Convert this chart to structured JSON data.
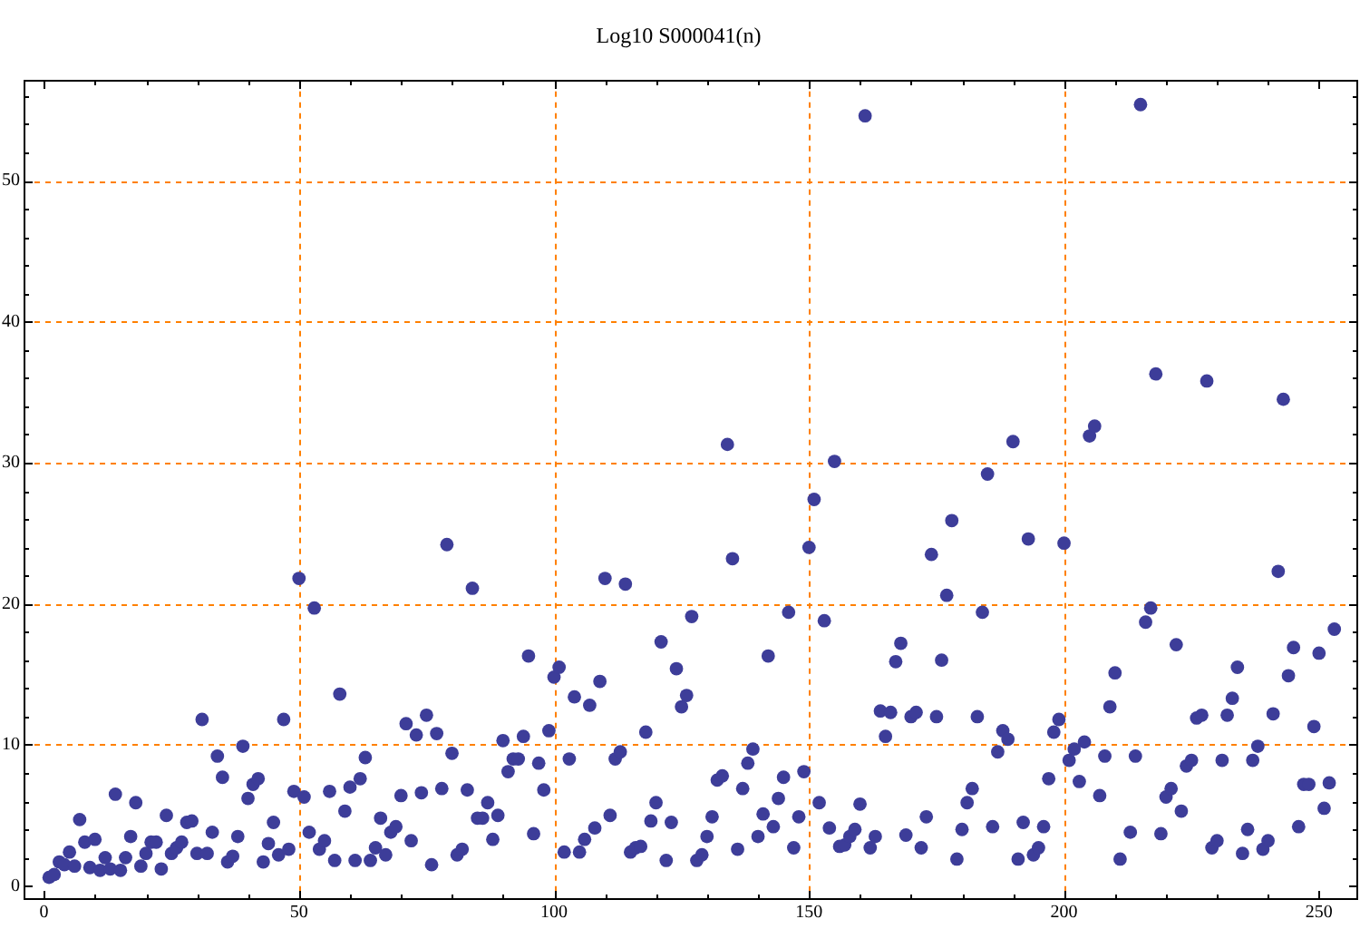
{
  "chart_data": {
    "type": "scatter",
    "title": "Log10 S000041(n)",
    "color": "#3d3d99",
    "marker": "circle",
    "xlim": [
      -4,
      257.5
    ],
    "ylim": [
      -1,
      57.1
    ],
    "xticks": [
      0,
      {
        "value": 10,
        "label": null
      },
      {
        "value": 20,
        "label": null
      },
      {
        "value": 30,
        "label": null
      },
      {
        "value": 40,
        "label": null
      },
      50,
      {
        "value": 60,
        "label": null
      },
      {
        "value": 70,
        "label": null
      },
      {
        "value": 80,
        "label": null
      },
      {
        "value": 90,
        "label": null
      },
      100,
      {
        "value": 110,
        "label": null
      },
      {
        "value": 120,
        "label": null
      },
      {
        "value": 130,
        "label": null
      },
      {
        "value": 140,
        "label": null
      },
      150,
      {
        "value": 160,
        "label": null
      },
      {
        "value": 170,
        "label": null
      },
      {
        "value": 180,
        "label": null
      },
      {
        "value": 190,
        "label": null
      },
      200,
      {
        "value": 210,
        "label": null
      },
      {
        "value": 220,
        "label": null
      },
      {
        "value": 230,
        "label": null
      },
      {
        "value": 240,
        "label": null
      },
      250
    ],
    "yticks": [
      0,
      {
        "value": 2,
        "label": null
      },
      {
        "value": 4,
        "label": null
      },
      {
        "value": 6,
        "label": null
      },
      {
        "value": 8,
        "label": null
      },
      10,
      {
        "value": 12,
        "label": null
      },
      {
        "value": 14,
        "label": null
      },
      {
        "value": 16,
        "label": null
      },
      {
        "value": 18,
        "label": null
      },
      20,
      {
        "value": 22,
        "label": null
      },
      {
        "value": 24,
        "label": null
      },
      {
        "value": 26,
        "label": null
      },
      {
        "value": 28,
        "label": null
      },
      30,
      {
        "value": 32,
        "label": null
      },
      {
        "value": 34,
        "label": null
      },
      {
        "value": 36,
        "label": null
      },
      {
        "value": 38,
        "label": null
      },
      40,
      {
        "value": 42,
        "label": null
      },
      {
        "value": 44,
        "label": null
      },
      {
        "value": 46,
        "label": null
      },
      {
        "value": 48,
        "label": null
      },
      50,
      {
        "value": 52,
        "label": null
      },
      {
        "value": 54,
        "label": null
      },
      {
        "value": 56,
        "label": null
      }
    ],
    "ref_lines": [
      {
        "axis": "x",
        "value": 50,
        "color": "#ff8000",
        "line_style": "dashed"
      },
      {
        "axis": "x",
        "value": 100,
        "color": "#ff8000",
        "line_style": "dashed"
      },
      {
        "axis": "x",
        "value": 150,
        "color": "#ff8000",
        "line_style": "dashed"
      },
      {
        "axis": "x",
        "value": 200,
        "color": "#ff8000",
        "line_style": "dashed"
      },
      {
        "axis": "y",
        "value": 10,
        "color": "#ff8000",
        "line_style": "dashed"
      },
      {
        "axis": "y",
        "value": 20,
        "color": "#ff8000",
        "line_style": "dashed"
      },
      {
        "axis": "y",
        "value": 30,
        "color": "#ff8000",
        "line_style": "dashed"
      },
      {
        "axis": "y",
        "value": 40,
        "color": "#ff8000",
        "line_style": "dashed"
      },
      {
        "axis": "y",
        "value": 50,
        "color": "#ff8000",
        "line_style": "dashed"
      }
    ],
    "x": [
      1,
      2,
      3,
      4,
      5,
      6,
      7,
      8,
      9,
      10,
      11,
      12,
      13,
      14,
      15,
      16,
      17,
      18,
      19,
      20,
      21,
      22,
      23,
      24,
      25,
      26,
      27,
      28,
      29,
      30,
      31,
      32,
      33,
      34,
      35,
      36,
      37,
      38,
      39,
      40,
      41,
      42,
      43,
      44,
      45,
      46,
      47,
      48,
      49,
      50,
      51,
      52,
      53,
      54,
      55,
      56,
      57,
      58,
      59,
      60,
      61,
      62,
      63,
      64,
      65,
      66,
      67,
      68,
      69,
      70,
      71,
      72,
      73,
      74,
      75,
      76,
      77,
      78,
      79,
      80,
      81,
      82,
      83,
      84,
      85,
      86,
      87,
      88,
      89,
      90,
      91,
      92,
      93,
      94,
      95,
      96,
      97,
      98,
      99,
      100,
      101,
      102,
      103,
      104,
      105,
      106,
      107,
      108,
      109,
      110,
      111,
      112,
      113,
      114,
      115,
      116,
      117,
      118,
      119,
      120,
      121,
      122,
      123,
      124,
      125,
      126,
      127,
      128,
      129,
      130,
      131,
      132,
      133,
      134,
      135,
      136,
      137,
      138,
      139,
      140,
      141,
      142,
      143,
      144,
      145,
      146,
      147,
      148,
      149,
      150,
      151,
      152,
      153,
      154,
      155,
      156,
      157,
      158,
      159,
      160,
      161,
      162,
      163,
      164,
      165,
      166,
      167,
      168,
      169,
      170,
      171,
      172,
      173,
      174,
      175,
      176,
      177,
      178,
      179,
      180,
      181,
      182,
      183,
      184,
      185,
      186,
      187,
      188,
      189,
      190,
      191,
      192,
      193,
      194,
      195,
      196,
      197,
      198,
      199,
      200,
      201,
      202,
      203,
      204,
      205,
      206,
      207,
      208,
      209,
      210,
      211,
      213,
      214,
      215,
      216,
      217,
      218,
      219,
      220,
      221,
      222,
      223,
      224,
      225,
      226,
      227,
      228,
      229,
      230,
      231,
      232,
      233,
      234,
      235,
      236,
      237,
      238,
      239,
      240,
      241,
      242,
      243,
      244,
      245,
      246,
      247,
      248,
      249,
      250,
      251,
      252,
      253
    ],
    "values": [
      0.6,
      0.8,
      1.7,
      1.5,
      2.4,
      1.4,
      4.7,
      3.1,
      1.3,
      3.3,
      1.1,
      2.0,
      1.2,
      6.5,
      1.1,
      2.0,
      3.5,
      5.9,
      1.4,
      2.3,
      3.1,
      3.1,
      1.2,
      5.0,
      2.3,
      2.7,
      3.1,
      4.5,
      4.6,
      2.3,
      11.8,
      2.3,
      3.8,
      9.2,
      7.7,
      1.7,
      2.1,
      3.5,
      9.9,
      6.2,
      7.2,
      7.6,
      1.7,
      3.0,
      4.5,
      2.2,
      11.8,
      2.6,
      6.7,
      21.8,
      6.3,
      3.8,
      19.7,
      2.6,
      3.2,
      6.7,
      1.8,
      13.6,
      5.3,
      7.0,
      1.8,
      7.6,
      9.1,
      1.8,
      2.7,
      4.8,
      2.2,
      3.8,
      4.2,
      6.4,
      11.5,
      3.2,
      10.7,
      6.6,
      12.1,
      1.5,
      10.8,
      6.9,
      24.2,
      9.4,
      2.2,
      2.6,
      6.8,
      21.1,
      4.8,
      4.8,
      5.9,
      3.3,
      5.0,
      10.3,
      8.1,
      9.0,
      9.0,
      10.6,
      16.3,
      3.7,
      8.7,
      6.8,
      11.0,
      14.8,
      15.5,
      2.4,
      9.0,
      13.4,
      2.4,
      3.3,
      12.8,
      4.1,
      14.5,
      21.8,
      5.0,
      9.0,
      9.5,
      21.4,
      2.4,
      2.7,
      2.8,
      10.9,
      4.6,
      5.9,
      17.3,
      1.8,
      4.5,
      15.4,
      12.7,
      13.5,
      19.1,
      1.8,
      2.2,
      3.5,
      4.9,
      7.5,
      7.8,
      31.3,
      23.2,
      2.6,
      6.9,
      8.7,
      9.7,
      3.5,
      5.1,
      16.3,
      4.2,
      6.2,
      7.7,
      19.4,
      2.7,
      4.9,
      8.1,
      24.0,
      27.4,
      5.9,
      18.8,
      4.1,
      30.1,
      2.8,
      2.9,
      3.5,
      4.0,
      5.8,
      54.6,
      2.7,
      3.5,
      12.4,
      10.6,
      12.3,
      15.9,
      17.2,
      3.6,
      12.0,
      12.3,
      2.7,
      4.9,
      23.5,
      12.0,
      16.0,
      20.6,
      25.9,
      1.9,
      4.0,
      5.9,
      6.9,
      12.0,
      19.4,
      29.2,
      4.2,
      9.5,
      11.0,
      10.4,
      31.5,
      1.9,
      4.5,
      24.6,
      2.2,
      2.7,
      4.2,
      7.6,
      10.9,
      11.8,
      24.3,
      8.9,
      9.7,
      7.4,
      10.2,
      31.9,
      32.6,
      6.4,
      9.2,
      12.7,
      15.1,
      1.9,
      3.8,
      9.2,
      55.4,
      18.7,
      19.7,
      36.3,
      3.7,
      6.3,
      6.9,
      17.1,
      5.3,
      8.5,
      8.9,
      11.9,
      12.1,
      35.8,
      2.7,
      3.2,
      8.9,
      12.1,
      13.3,
      15.5,
      2.3,
      4.0,
      8.9,
      9.9,
      2.6,
      3.2,
      12.2,
      22.3,
      34.5,
      14.9,
      16.9,
      4.2,
      7.2,
      7.2,
      11.3,
      16.5,
      5.5,
      7.3,
      18.2
    ]
  }
}
